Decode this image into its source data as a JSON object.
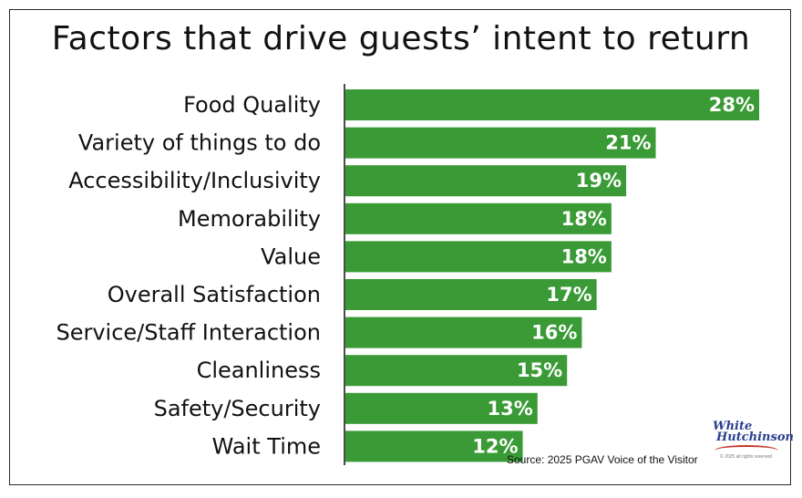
{
  "chart_data": {
    "type": "bar",
    "orientation": "horizontal",
    "title": "Factors that drive guests’ intent to return",
    "categories": [
      "Food Quality",
      "Variety of things to do",
      "Accessibility/Inclusivity",
      "Memorability",
      "Value",
      "Overall Satisfaction",
      "Service/Staff Interaction",
      "Cleanliness",
      "Safety/Security",
      "Wait Time"
    ],
    "values": [
      28,
      21,
      19,
      18,
      18,
      17,
      16,
      15,
      13,
      12
    ],
    "value_labels": [
      "28%",
      "21%",
      "19%",
      "18%",
      "18%",
      "17%",
      "16%",
      "15%",
      "13%",
      "12%"
    ],
    "unit": "%",
    "xlim": [
      0,
      28
    ],
    "grid": false,
    "legend": "none",
    "bar_color": "#3a9a36"
  },
  "source": "Source: 2025 PGAV Voice of the Visitor",
  "logo": {
    "line1": "White",
    "line2": "Hutchinson",
    "tagline": "© 2025 all rights reserved"
  }
}
